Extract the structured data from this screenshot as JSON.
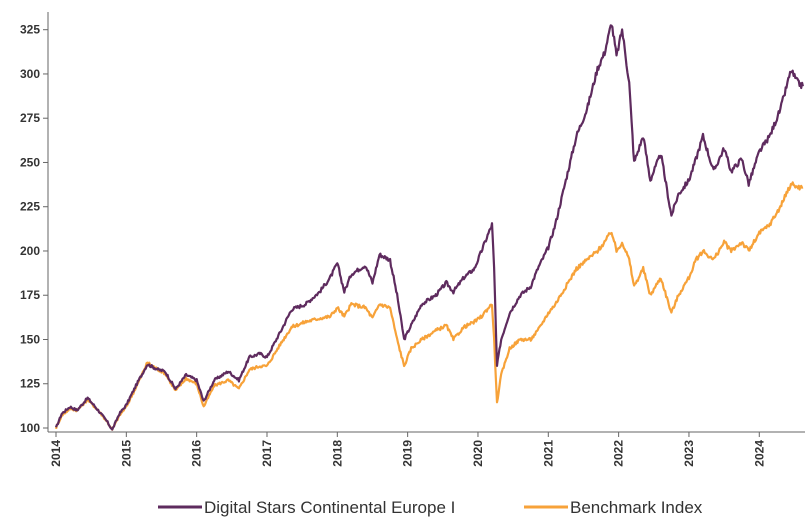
{
  "chart_data": {
    "type": "line",
    "title": "",
    "xlabel": "",
    "ylabel": "",
    "xlim": [
      2014.0,
      2024.65
    ],
    "ylim": [
      100,
      335
    ],
    "grid": false,
    "legend_position": "bottom",
    "y_ticks": [
      100,
      125,
      150,
      175,
      200,
      225,
      250,
      275,
      300,
      325
    ],
    "x_ticks": [
      "2014",
      "2015",
      "2016",
      "2017",
      "2018",
      "2019",
      "2020",
      "2021",
      "2022",
      "2023",
      "2024"
    ],
    "series": [
      {
        "name": "Digital Stars Continental Europe I",
        "color": "#5e2b5e",
        "points": [
          [
            2014.0,
            100
          ],
          [
            2014.08,
            108
          ],
          [
            2014.2,
            112
          ],
          [
            2014.3,
            110
          ],
          [
            2014.45,
            117
          ],
          [
            2014.6,
            110
          ],
          [
            2014.72,
            104
          ],
          [
            2014.8,
            99
          ],
          [
            2014.9,
            108
          ],
          [
            2015.0,
            113
          ],
          [
            2015.15,
            125
          ],
          [
            2015.3,
            136
          ],
          [
            2015.45,
            133
          ],
          [
            2015.55,
            132
          ],
          [
            2015.7,
            122
          ],
          [
            2015.85,
            130
          ],
          [
            2016.0,
            127
          ],
          [
            2016.1,
            115
          ],
          [
            2016.25,
            127
          ],
          [
            2016.45,
            132
          ],
          [
            2016.6,
            127
          ],
          [
            2016.75,
            140
          ],
          [
            2016.9,
            142
          ],
          [
            2017.0,
            140
          ],
          [
            2017.2,
            155
          ],
          [
            2017.35,
            167
          ],
          [
            2017.55,
            170
          ],
          [
            2017.75,
            177
          ],
          [
            2017.9,
            185
          ],
          [
            2018.0,
            193
          ],
          [
            2018.1,
            177
          ],
          [
            2018.2,
            187
          ],
          [
            2018.4,
            192
          ],
          [
            2018.5,
            182
          ],
          [
            2018.6,
            198
          ],
          [
            2018.75,
            195
          ],
          [
            2018.85,
            175
          ],
          [
            2018.95,
            150
          ],
          [
            2019.05,
            158
          ],
          [
            2019.2,
            170
          ],
          [
            2019.4,
            175
          ],
          [
            2019.55,
            182
          ],
          [
            2019.65,
            177
          ],
          [
            2019.8,
            185
          ],
          [
            2019.95,
            190
          ],
          [
            2020.05,
            200
          ],
          [
            2020.15,
            210
          ],
          [
            2020.2,
            215
          ],
          [
            2020.23,
            190
          ],
          [
            2020.27,
            135
          ],
          [
            2020.33,
            150
          ],
          [
            2020.45,
            165
          ],
          [
            2020.6,
            175
          ],
          [
            2020.75,
            180
          ],
          [
            2020.85,
            190
          ],
          [
            2021.0,
            202
          ],
          [
            2021.1,
            215
          ],
          [
            2021.25,
            240
          ],
          [
            2021.4,
            265
          ],
          [
            2021.55,
            280
          ],
          [
            2021.7,
            303
          ],
          [
            2021.8,
            312
          ],
          [
            2021.9,
            329
          ],
          [
            2021.97,
            310
          ],
          [
            2022.05,
            325
          ],
          [
            2022.15,
            295
          ],
          [
            2022.22,
            250
          ],
          [
            2022.35,
            265
          ],
          [
            2022.45,
            240
          ],
          [
            2022.6,
            255
          ],
          [
            2022.75,
            220
          ],
          [
            2022.85,
            232
          ],
          [
            2023.0,
            240
          ],
          [
            2023.1,
            252
          ],
          [
            2023.2,
            265
          ],
          [
            2023.35,
            245
          ],
          [
            2023.5,
            258
          ],
          [
            2023.6,
            245
          ],
          [
            2023.75,
            252
          ],
          [
            2023.85,
            238
          ],
          [
            2024.0,
            256
          ],
          [
            2024.15,
            265
          ],
          [
            2024.3,
            280
          ],
          [
            2024.45,
            302
          ],
          [
            2024.55,
            295
          ],
          [
            2024.62,
            293
          ]
        ]
      },
      {
        "name": "Benchmark Index",
        "color": "#f7a239",
        "points": [
          [
            2014.0,
            100
          ],
          [
            2014.08,
            107
          ],
          [
            2014.2,
            111
          ],
          [
            2014.3,
            110
          ],
          [
            2014.45,
            116
          ],
          [
            2014.6,
            110
          ],
          [
            2014.72,
            104
          ],
          [
            2014.8,
            99
          ],
          [
            2014.9,
            107
          ],
          [
            2015.0,
            112
          ],
          [
            2015.15,
            124
          ],
          [
            2015.3,
            137
          ],
          [
            2015.45,
            133
          ],
          [
            2015.55,
            131
          ],
          [
            2015.7,
            121
          ],
          [
            2015.85,
            128
          ],
          [
            2016.0,
            125
          ],
          [
            2016.1,
            112
          ],
          [
            2016.25,
            124
          ],
          [
            2016.45,
            127
          ],
          [
            2016.6,
            122
          ],
          [
            2016.75,
            133
          ],
          [
            2016.9,
            135
          ],
          [
            2017.0,
            135
          ],
          [
            2017.2,
            148
          ],
          [
            2017.35,
            157
          ],
          [
            2017.55,
            160
          ],
          [
            2017.75,
            162
          ],
          [
            2017.9,
            163
          ],
          [
            2018.0,
            168
          ],
          [
            2018.1,
            163
          ],
          [
            2018.2,
            170
          ],
          [
            2018.4,
            168
          ],
          [
            2018.5,
            162
          ],
          [
            2018.6,
            170
          ],
          [
            2018.75,
            168
          ],
          [
            2018.85,
            150
          ],
          [
            2018.95,
            135
          ],
          [
            2019.05,
            145
          ],
          [
            2019.2,
            150
          ],
          [
            2019.4,
            155
          ],
          [
            2019.55,
            158
          ],
          [
            2019.65,
            150
          ],
          [
            2019.8,
            157
          ],
          [
            2019.95,
            160
          ],
          [
            2020.05,
            163
          ],
          [
            2020.15,
            168
          ],
          [
            2020.2,
            170
          ],
          [
            2020.23,
            150
          ],
          [
            2020.27,
            114
          ],
          [
            2020.33,
            130
          ],
          [
            2020.45,
            145
          ],
          [
            2020.6,
            150
          ],
          [
            2020.75,
            150
          ],
          [
            2020.85,
            155
          ],
          [
            2021.0,
            165
          ],
          [
            2021.1,
            170
          ],
          [
            2021.25,
            180
          ],
          [
            2021.4,
            190
          ],
          [
            2021.55,
            195
          ],
          [
            2021.7,
            200
          ],
          [
            2021.8,
            205
          ],
          [
            2021.9,
            211
          ],
          [
            2021.97,
            200
          ],
          [
            2022.05,
            205
          ],
          [
            2022.15,
            195
          ],
          [
            2022.22,
            180
          ],
          [
            2022.35,
            190
          ],
          [
            2022.45,
            175
          ],
          [
            2022.6,
            185
          ],
          [
            2022.75,
            165
          ],
          [
            2022.85,
            175
          ],
          [
            2023.0,
            185
          ],
          [
            2023.1,
            195
          ],
          [
            2023.2,
            200
          ],
          [
            2023.35,
            195
          ],
          [
            2023.5,
            205
          ],
          [
            2023.6,
            200
          ],
          [
            2023.75,
            205
          ],
          [
            2023.85,
            200
          ],
          [
            2024.0,
            210
          ],
          [
            2024.15,
            215
          ],
          [
            2024.3,
            225
          ],
          [
            2024.45,
            238
          ],
          [
            2024.55,
            236
          ],
          [
            2024.62,
            236
          ]
        ]
      }
    ]
  }
}
